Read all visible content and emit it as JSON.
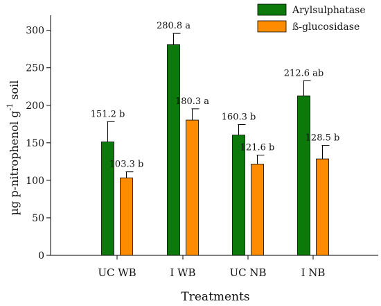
{
  "chart_data": {
    "type": "bar",
    "categories": [
      "UC WB",
      "I WB",
      "UC NB",
      "I NB"
    ],
    "series": [
      {
        "name": "Arylsulphatase",
        "color": "#0b7a0b",
        "values": [
          151.2,
          280.8,
          160.3,
          212.6
        ],
        "errors": [
          27,
          15,
          14,
          20
        ],
        "labels": [
          "151.2 b",
          "280.8 a",
          "160.3 b",
          "212.6 ab"
        ]
      },
      {
        "name": "ß-glucosidase",
        "color": "#ff8c00",
        "values": [
          103.3,
          180.3,
          121.6,
          128.5
        ],
        "errors": [
          8,
          15,
          12,
          18
        ],
        "labels": [
          "103.3 b",
          "180.3 a",
          "121.6 b",
          "128.5 b"
        ]
      }
    ],
    "xlabel": "Treatments",
    "ylabel_main": "µg p-nitrophenol g",
    "ylabel_sup": "-1",
    "ylabel_tail": " soil",
    "ylim": [
      0,
      320
    ],
    "yticks": [
      0,
      50,
      100,
      150,
      200,
      250,
      300
    ],
    "legend_position": "top-right",
    "grid": false
  }
}
